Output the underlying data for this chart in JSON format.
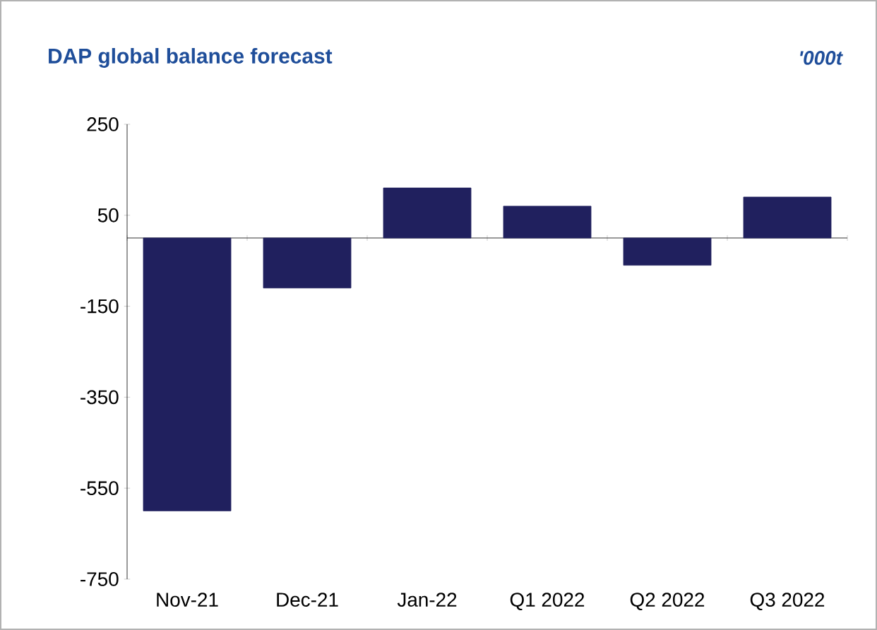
{
  "chart_data": {
    "type": "bar",
    "title": "DAP global balance forecast",
    "ylabel": "'000t",
    "categories": [
      "Nov-21",
      "Dec-21",
      "Jan-22",
      "Q1 2022",
      "Q2 2022",
      "Q3 2022"
    ],
    "values": [
      -600,
      -110,
      110,
      70,
      -60,
      90
    ],
    "color": "#20205e",
    "ylim": [
      -750,
      250
    ],
    "yticks": [
      -750,
      -550,
      -350,
      -150,
      50,
      250
    ]
  }
}
